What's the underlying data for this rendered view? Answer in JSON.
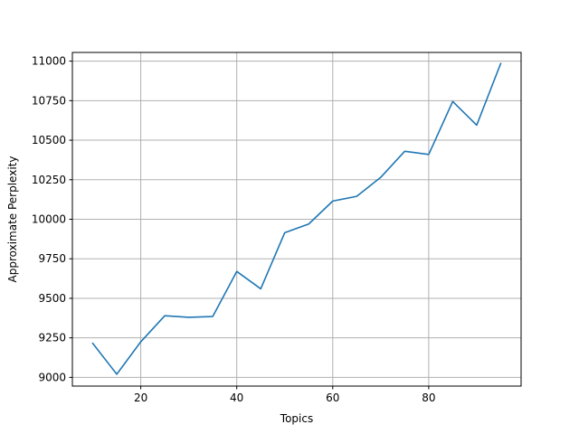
{
  "chart_data": {
    "type": "line",
    "title": "",
    "xlabel": "Topics",
    "ylabel": "Approximate Perplexity",
    "xlim": [
      5.75,
      99.25
    ],
    "ylim": [
      8945,
      11055
    ],
    "xticks": [
      20,
      40,
      60,
      80
    ],
    "yticks": [
      9000,
      9250,
      9500,
      9750,
      10000,
      10250,
      10500,
      10750,
      11000
    ],
    "grid": true,
    "series": [
      {
        "name": "perplexity",
        "color": "#1f77b4",
        "x": [
          10,
          15,
          20,
          25,
          30,
          35,
          40,
          45,
          50,
          55,
          60,
          65,
          70,
          75,
          80,
          85,
          90,
          95
        ],
        "y": [
          9215,
          9020,
          9225,
          9390,
          9380,
          9385,
          9670,
          9560,
          9915,
          9970,
          10115,
          10145,
          10265,
          10430,
          10410,
          10745,
          10595,
          10985
        ]
      }
    ]
  }
}
